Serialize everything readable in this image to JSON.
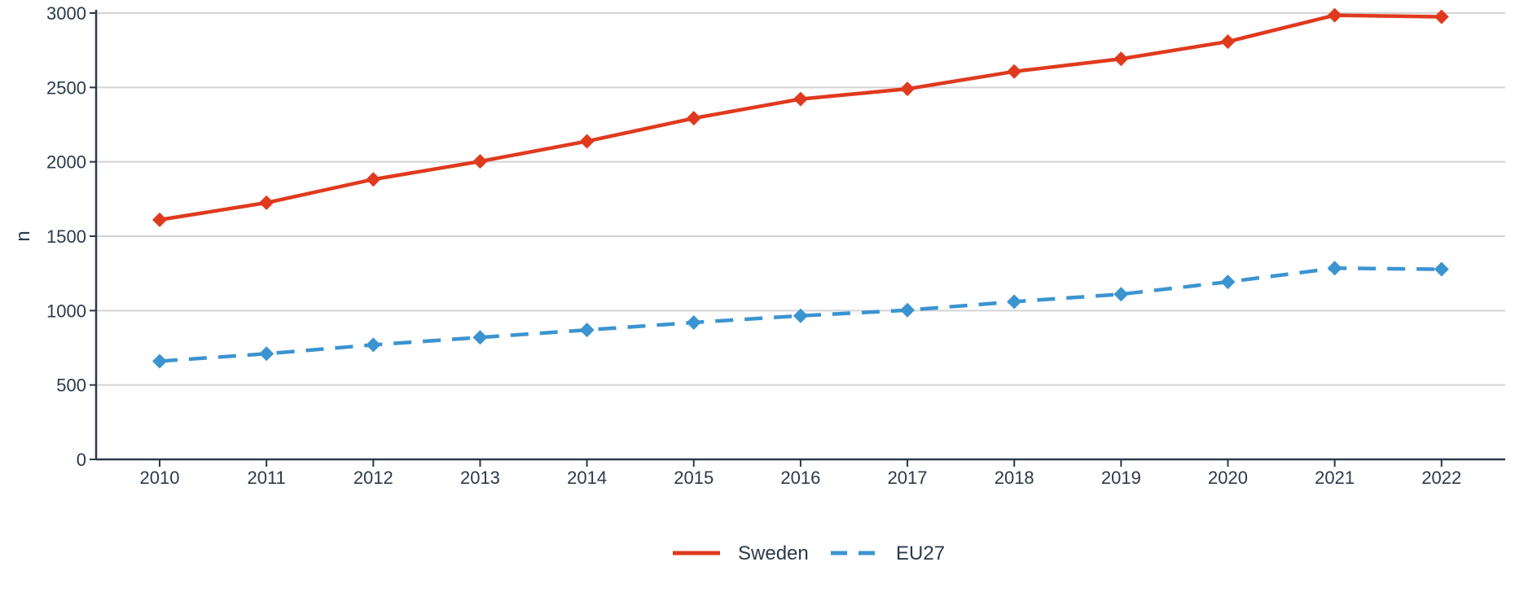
{
  "chart_data": {
    "type": "line",
    "title": "",
    "xlabel": "",
    "ylabel": "n",
    "ylim": [
      0,
      3000
    ],
    "yticks": [
      0,
      500,
      1000,
      1500,
      2000,
      2500,
      3000
    ],
    "grid": "horizontal",
    "legend_position": "bottom-center",
    "categories": [
      "2010",
      "2011",
      "2012",
      "2013",
      "2014",
      "2015",
      "2016",
      "2017",
      "2018",
      "2019",
      "2020",
      "2021",
      "2022"
    ],
    "series": [
      {
        "name": "Sweden",
        "color": "#e03a1e",
        "line_style": "solid",
        "marker": "diamond",
        "values": [
          1610,
          1725,
          1882,
          2003,
          2138,
          2293,
          2422,
          2490,
          2607,
          2692,
          2808,
          2985,
          2975
        ]
      },
      {
        "name": "EU27",
        "color": "#3b94d0",
        "line_style": "dashed",
        "marker": "diamond",
        "values": [
          660,
          710,
          770,
          820,
          870,
          920,
          965,
          1003,
          1060,
          1110,
          1193,
          1285,
          1278
        ]
      }
    ]
  }
}
